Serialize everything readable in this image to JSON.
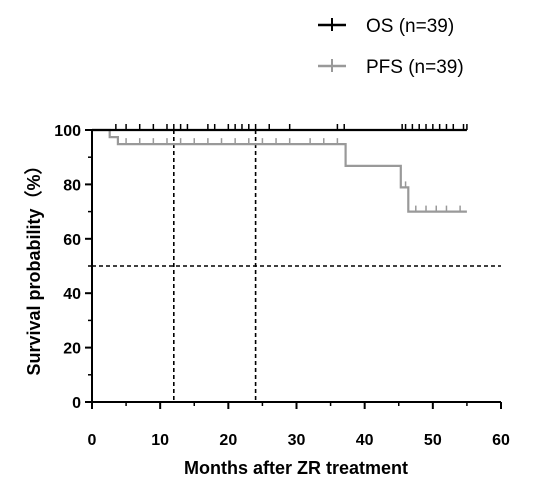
{
  "chart_data": {
    "type": "line",
    "xlabel": "Months after ZR treatment",
    "ylabel": "Survival probability（%）",
    "xlim": [
      0,
      60
    ],
    "ylim": [
      0,
      100
    ],
    "xticks": [
      0,
      10,
      20,
      30,
      40,
      50,
      60
    ],
    "yticks": [
      0,
      20,
      40,
      60,
      80,
      100
    ],
    "legend_position": "top-right",
    "grid": false,
    "series": [
      {
        "name": "OS (n=39)",
        "color": "#000000",
        "step": [
          [
            0,
            100
          ],
          [
            55,
            100
          ]
        ],
        "censored": [
          3.5,
          5,
          7,
          9,
          11,
          12,
          13,
          14,
          17,
          18,
          20,
          21,
          22,
          23,
          24,
          26,
          29,
          36,
          37,
          45.5,
          46,
          47,
          48,
          49,
          50,
          51,
          52,
          53,
          54.5,
          55
        ]
      },
      {
        "name": "PFS (n=39)",
        "color": "#999999",
        "step": [
          [
            0,
            100
          ],
          [
            2.6,
            100
          ],
          [
            2.6,
            97.4
          ],
          [
            3.8,
            97.4
          ],
          [
            3.8,
            94.8
          ],
          [
            37.2,
            94.8
          ],
          [
            37.2,
            86.8
          ],
          [
            45.3,
            86.8
          ],
          [
            45.3,
            78.9
          ],
          [
            46.4,
            78.9
          ],
          [
            46.4,
            70
          ],
          [
            55,
            70
          ]
        ],
        "censored": [
          5,
          7,
          9,
          11,
          13,
          15,
          17,
          19,
          21,
          23,
          25,
          27,
          29,
          32,
          34,
          36,
          46,
          47.5,
          49,
          50.5,
          52,
          54
        ]
      }
    ],
    "reference_lines": [
      {
        "orientation": "horizontal",
        "value": 50,
        "style": "dashed"
      },
      {
        "orientation": "vertical",
        "value": 12,
        "style": "dashed"
      },
      {
        "orientation": "vertical",
        "value": 24,
        "style": "dashed"
      }
    ]
  }
}
